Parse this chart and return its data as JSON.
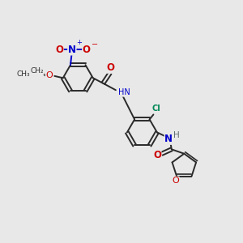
{
  "bg_color": "#e8e8e8",
  "bond_color": "#2a2a2a",
  "nitrogen_color": "#0000cc",
  "oxygen_color": "#cc0000",
  "chlorine_color": "#008855",
  "hydrogen_color": "#607070",
  "lw": 1.4,
  "fs": 7.0,
  "xlim": [
    0,
    10
  ],
  "ylim": [
    0,
    10
  ]
}
